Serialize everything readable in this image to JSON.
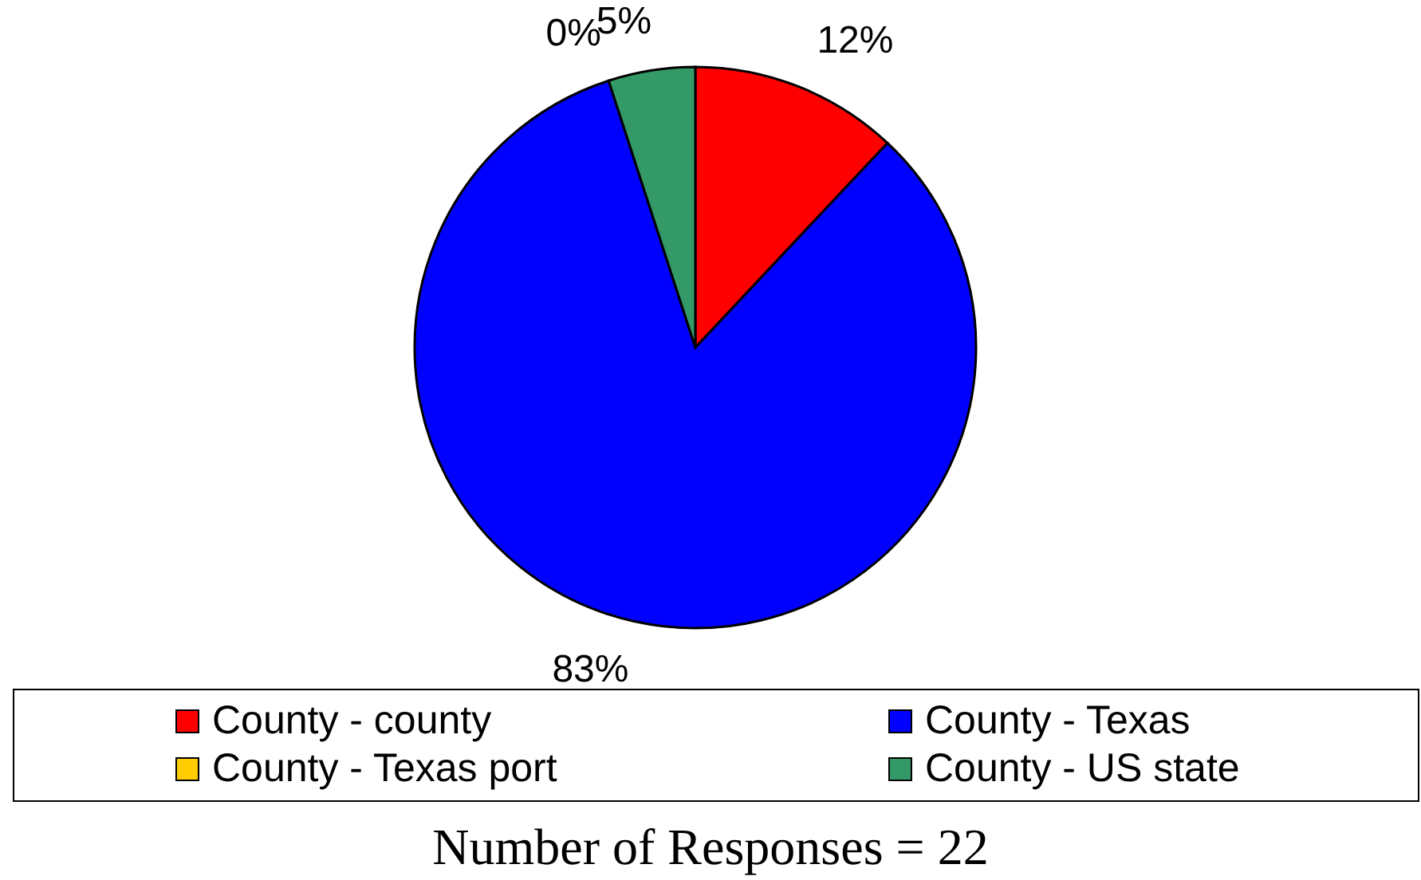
{
  "chart_data": {
    "type": "pie",
    "categories": [
      "County - county",
      "County - Texas",
      "County - Texas port",
      "County - US state"
    ],
    "values": [
      12,
      83,
      0,
      5
    ],
    "colors": [
      "#ff0000",
      "#0000ff",
      "#ffcc00",
      "#339966"
    ],
    "value_labels": [
      "12%",
      "83%",
      "0%",
      "5%"
    ],
    "legend": "bottom",
    "annotations": [
      "Number of Responses = 22"
    ]
  }
}
